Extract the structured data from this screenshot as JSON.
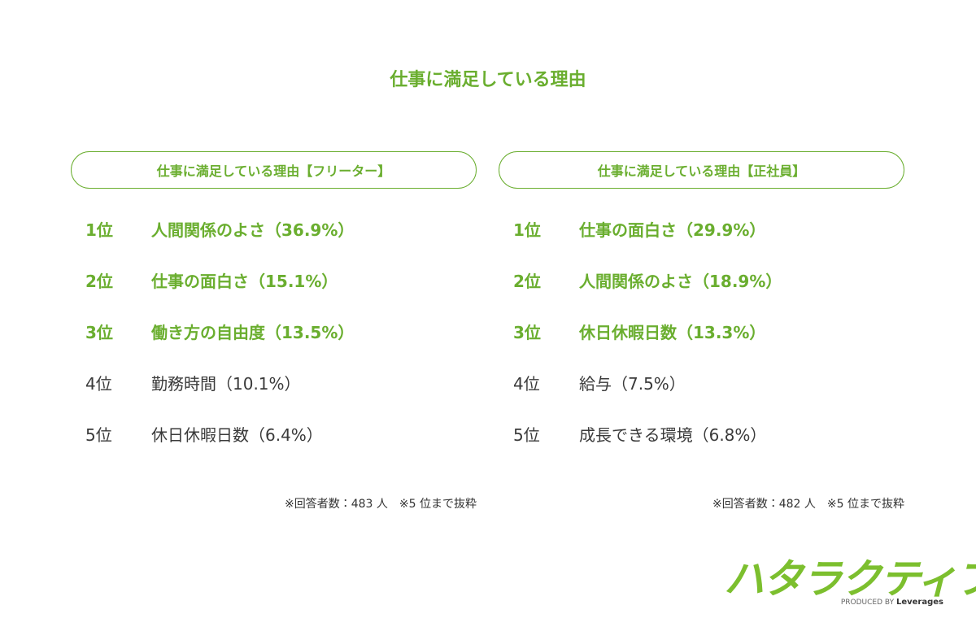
{
  "title": "仕事に満足している理由",
  "panels": [
    {
      "header": "仕事に満足している理由【フリーター】",
      "items": [
        {
          "rank": "1位",
          "label": "人間関係のよさ（36.9%）"
        },
        {
          "rank": "2位",
          "label": "仕事の面白さ（15.1%）"
        },
        {
          "rank": "3位",
          "label": "働き方の自由度（13.5%）"
        },
        {
          "rank": "4位",
          "label": "勤務時間（10.1%）"
        },
        {
          "rank": "5位",
          "label": "休日休暇日数（6.4%）"
        }
      ],
      "note": "※回答者数：483 人　※5 位まで抜粋"
    },
    {
      "header": "仕事に満足している理由【正社員】",
      "items": [
        {
          "rank": "1位",
          "label": "仕事の面白さ（29.9%）"
        },
        {
          "rank": "2位",
          "label": "人間関係のよさ（18.9%）"
        },
        {
          "rank": "3位",
          "label": "休日休暇日数（13.3%）"
        },
        {
          "rank": "4位",
          "label": "給与（7.5%）"
        },
        {
          "rank": "5位",
          "label": "成長できる環境（6.8%）"
        }
      ],
      "note": "※回答者数：482 人　※5 位まで抜粋"
    }
  ],
  "logo": {
    "text": "ハタラクティブ",
    "produced_by": "PRODUCED BY",
    "company": "Leverages"
  }
}
